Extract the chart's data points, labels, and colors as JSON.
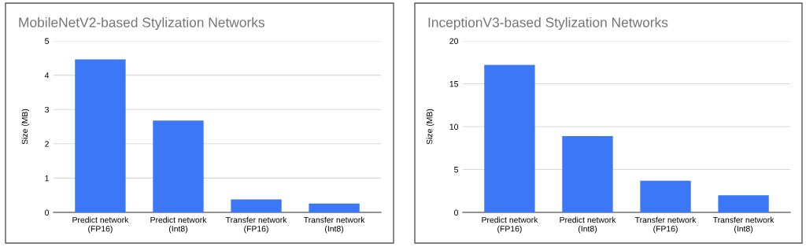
{
  "chart_data": [
    {
      "type": "bar",
      "title": "MobileNetV2-based Stylization Networks",
      "ylabel": "Size (MB)",
      "categories": [
        "Predict network\n(FP16)",
        "Predict network\n(Int8)",
        "Transfer network\n(FP16)",
        "Transfer network\n(Int8)"
      ],
      "values": [
        4.46,
        2.68,
        0.38,
        0.26
      ],
      "color": "#3c78f5",
      "ylim": [
        0,
        5
      ],
      "yticks": [
        0,
        1,
        2,
        3,
        4,
        5
      ],
      "grid": "y",
      "legend": false
    },
    {
      "type": "bar",
      "title": "InceptionV3-based Stylization Networks",
      "ylabel": "Size (MB)",
      "categories": [
        "Predict network\n(FP16)",
        "Predict network\n(Int8)",
        "Transfer network\n(FP16)",
        "Transfer network\n(Int8)"
      ],
      "values": [
        17.2,
        8.9,
        3.7,
        2.0
      ],
      "color": "#3c78f5",
      "ylim": [
        0,
        20
      ],
      "yticks": [
        0,
        5,
        10,
        15,
        20
      ],
      "grid": "y",
      "legend": false
    }
  ]
}
